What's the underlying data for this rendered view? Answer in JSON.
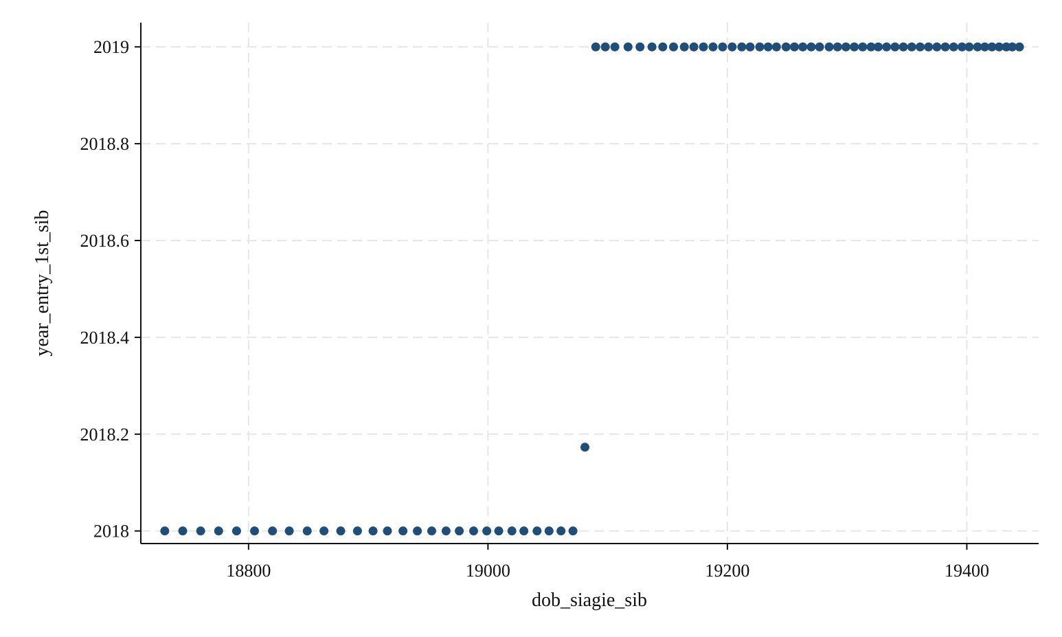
{
  "chart_data": {
    "type": "scatter",
    "title": "",
    "xlabel": "dob_siagie_sib",
    "ylabel": "year_entry_1st_sib",
    "xlim": [
      18710,
      19460
    ],
    "ylim": [
      2017.974,
      2019.05
    ],
    "xticks": [
      18800,
      19000,
      19200,
      19400
    ],
    "yticks": [
      2018,
      2018.2,
      2018.4,
      2018.6,
      2018.8,
      2019
    ],
    "ytick_labels": [
      "2018",
      "2018.2",
      "2018.4",
      "2018.6",
      "2018.8",
      "2019"
    ],
    "grid": true,
    "marker_color": "#1f4e79",
    "series": [
      {
        "points": [
          {
            "x": 18730,
            "y": 2018
          },
          {
            "x": 18745,
            "y": 2018
          },
          {
            "x": 18760,
            "y": 2018
          },
          {
            "x": 18775,
            "y": 2018
          },
          {
            "x": 18790,
            "y": 2018
          },
          {
            "x": 18805,
            "y": 2018
          },
          {
            "x": 18820,
            "y": 2018
          },
          {
            "x": 18834,
            "y": 2018
          },
          {
            "x": 18849,
            "y": 2018
          },
          {
            "x": 18863,
            "y": 2018
          },
          {
            "x": 18877,
            "y": 2018
          },
          {
            "x": 18891,
            "y": 2018
          },
          {
            "x": 18904,
            "y": 2018
          },
          {
            "x": 18916,
            "y": 2018
          },
          {
            "x": 18929,
            "y": 2018
          },
          {
            "x": 18941,
            "y": 2018
          },
          {
            "x": 18953,
            "y": 2018
          },
          {
            "x": 18965,
            "y": 2018
          },
          {
            "x": 18976,
            "y": 2018
          },
          {
            "x": 18988,
            "y": 2018
          },
          {
            "x": 18999,
            "y": 2018
          },
          {
            "x": 19009,
            "y": 2018
          },
          {
            "x": 19020,
            "y": 2018
          },
          {
            "x": 19030,
            "y": 2018
          },
          {
            "x": 19041,
            "y": 2018
          },
          {
            "x": 19051,
            "y": 2018
          },
          {
            "x": 19061,
            "y": 2018
          },
          {
            "x": 19071,
            "y": 2018
          },
          {
            "x": 19081,
            "y": 2018.173
          },
          {
            "x": 19090,
            "y": 2019
          },
          {
            "x": 19098,
            "y": 2019
          },
          {
            "x": 19106,
            "y": 2019
          },
          {
            "x": 19117,
            "y": 2019
          },
          {
            "x": 19127,
            "y": 2019
          },
          {
            "x": 19137,
            "y": 2019
          },
          {
            "x": 19146,
            "y": 2019
          },
          {
            "x": 19155,
            "y": 2019
          },
          {
            "x": 19164,
            "y": 2019
          },
          {
            "x": 19172,
            "y": 2019
          },
          {
            "x": 19180,
            "y": 2019
          },
          {
            "x": 19188,
            "y": 2019
          },
          {
            "x": 19196,
            "y": 2019
          },
          {
            "x": 19204,
            "y": 2019
          },
          {
            "x": 19212,
            "y": 2019
          },
          {
            "x": 19219,
            "y": 2019
          },
          {
            "x": 19227,
            "y": 2019
          },
          {
            "x": 19234,
            "y": 2019
          },
          {
            "x": 19241,
            "y": 2019
          },
          {
            "x": 19249,
            "y": 2019
          },
          {
            "x": 19256,
            "y": 2019
          },
          {
            "x": 19263,
            "y": 2019
          },
          {
            "x": 19270,
            "y": 2019
          },
          {
            "x": 19277,
            "y": 2019
          },
          {
            "x": 19285,
            "y": 2019
          },
          {
            "x": 19292,
            "y": 2019
          },
          {
            "x": 19299,
            "y": 2019
          },
          {
            "x": 19306,
            "y": 2019
          },
          {
            "x": 19313,
            "y": 2019
          },
          {
            "x": 19320,
            "y": 2019
          },
          {
            "x": 19326,
            "y": 2019
          },
          {
            "x": 19333,
            "y": 2019
          },
          {
            "x": 19340,
            "y": 2019
          },
          {
            "x": 19347,
            "y": 2019
          },
          {
            "x": 19354,
            "y": 2019
          },
          {
            "x": 19361,
            "y": 2019
          },
          {
            "x": 19368,
            "y": 2019
          },
          {
            "x": 19375,
            "y": 2019
          },
          {
            "x": 19382,
            "y": 2019
          },
          {
            "x": 19389,
            "y": 2019
          },
          {
            "x": 19396,
            "y": 2019
          },
          {
            "x": 19402,
            "y": 2019
          },
          {
            "x": 19409,
            "y": 2019
          },
          {
            "x": 19415,
            "y": 2019
          },
          {
            "x": 19421,
            "y": 2019
          },
          {
            "x": 19427,
            "y": 2019
          },
          {
            "x": 19433,
            "y": 2019
          },
          {
            "x": 19438,
            "y": 2019
          },
          {
            "x": 19444,
            "y": 2019
          }
        ]
      }
    ]
  }
}
